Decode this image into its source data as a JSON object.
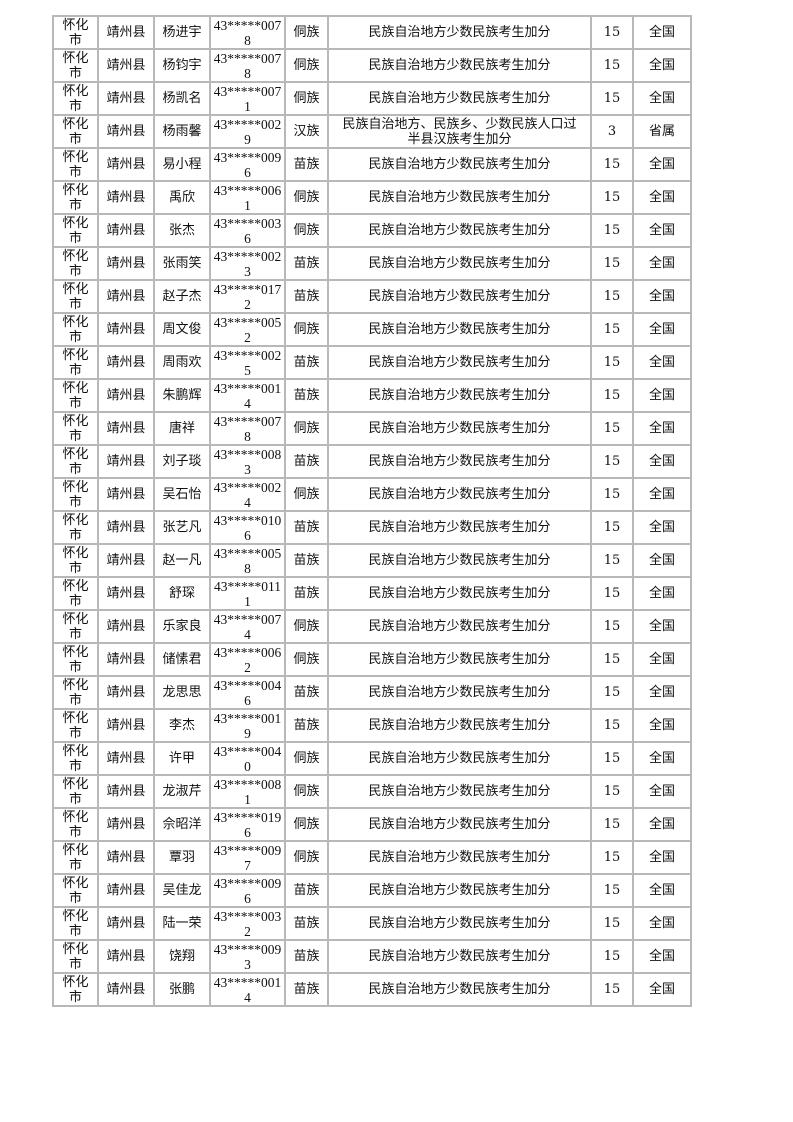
{
  "rows": [
    {
      "city": "怀化市",
      "county": "靖州县",
      "name": "杨进宇",
      "id": "43*****0078",
      "ethnicity": "侗族",
      "type": "民族自治地方少数民族考生加分",
      "score": "15",
      "scope": "全国"
    },
    {
      "city": "怀化市",
      "county": "靖州县",
      "name": "杨钧宇",
      "id": "43*****0078",
      "ethnicity": "侗族",
      "type": "民族自治地方少数民族考生加分",
      "score": "15",
      "scope": "全国"
    },
    {
      "city": "怀化市",
      "county": "靖州县",
      "name": "杨凯名",
      "id": "43*****0071",
      "ethnicity": "侗族",
      "type": "民族自治地方少数民族考生加分",
      "score": "15",
      "scope": "全国"
    },
    {
      "city": "怀化市",
      "county": "靖州县",
      "name": "杨雨馨",
      "id": "43*****0029",
      "ethnicity": "汉族",
      "type": "民族自治地方、民族乡、少数民族人口过半县汉族考生加分",
      "score": "3",
      "scope": "省属"
    },
    {
      "city": "怀化市",
      "county": "靖州县",
      "name": "易小程",
      "id": "43*****0096",
      "ethnicity": "苗族",
      "type": "民族自治地方少数民族考生加分",
      "score": "15",
      "scope": "全国"
    },
    {
      "city": "怀化市",
      "county": "靖州县",
      "name": "禹欣",
      "id": "43*****0061",
      "ethnicity": "侗族",
      "type": "民族自治地方少数民族考生加分",
      "score": "15",
      "scope": "全国"
    },
    {
      "city": "怀化市",
      "county": "靖州县",
      "name": "张杰",
      "id": "43*****0036",
      "ethnicity": "侗族",
      "type": "民族自治地方少数民族考生加分",
      "score": "15",
      "scope": "全国"
    },
    {
      "city": "怀化市",
      "county": "靖州县",
      "name": "张雨笑",
      "id": "43*****0023",
      "ethnicity": "苗族",
      "type": "民族自治地方少数民族考生加分",
      "score": "15",
      "scope": "全国"
    },
    {
      "city": "怀化市",
      "county": "靖州县",
      "name": "赵子杰",
      "id": "43*****0172",
      "ethnicity": "苗族",
      "type": "民族自治地方少数民族考生加分",
      "score": "15",
      "scope": "全国"
    },
    {
      "city": "怀化市",
      "county": "靖州县",
      "name": "周文俊",
      "id": "43*****0052",
      "ethnicity": "侗族",
      "type": "民族自治地方少数民族考生加分",
      "score": "15",
      "scope": "全国"
    },
    {
      "city": "怀化市",
      "county": "靖州县",
      "name": "周雨欢",
      "id": "43*****0025",
      "ethnicity": "苗族",
      "type": "民族自治地方少数民族考生加分",
      "score": "15",
      "scope": "全国"
    },
    {
      "city": "怀化市",
      "county": "靖州县",
      "name": "朱鹏辉",
      "id": "43*****0014",
      "ethnicity": "苗族",
      "type": "民族自治地方少数民族考生加分",
      "score": "15",
      "scope": "全国"
    },
    {
      "city": "怀化市",
      "county": "靖州县",
      "name": "唐祥",
      "id": "43*****0078",
      "ethnicity": "侗族",
      "type": "民族自治地方少数民族考生加分",
      "score": "15",
      "scope": "全国"
    },
    {
      "city": "怀化市",
      "county": "靖州县",
      "name": "刘子琰",
      "id": "43*****0083",
      "ethnicity": "苗族",
      "type": "民族自治地方少数民族考生加分",
      "score": "15",
      "scope": "全国"
    },
    {
      "city": "怀化市",
      "county": "靖州县",
      "name": "吴石怡",
      "id": "43*****0024",
      "ethnicity": "侗族",
      "type": "民族自治地方少数民族考生加分",
      "score": "15",
      "scope": "全国"
    },
    {
      "city": "怀化市",
      "county": "靖州县",
      "name": "张艺凡",
      "id": "43*****0106",
      "ethnicity": "苗族",
      "type": "民族自治地方少数民族考生加分",
      "score": "15",
      "scope": "全国"
    },
    {
      "city": "怀化市",
      "county": "靖州县",
      "name": "赵一凡",
      "id": "43*****0058",
      "ethnicity": "苗族",
      "type": "民族自治地方少数民族考生加分",
      "score": "15",
      "scope": "全国"
    },
    {
      "city": "怀化市",
      "county": "靖州县",
      "name": "舒琛",
      "id": "43*****0111",
      "ethnicity": "苗族",
      "type": "民族自治地方少数民族考生加分",
      "score": "15",
      "scope": "全国"
    },
    {
      "city": "怀化市",
      "county": "靖州县",
      "name": "乐家良",
      "id": "43*****0074",
      "ethnicity": "侗族",
      "type": "民族自治地方少数民族考生加分",
      "score": "15",
      "scope": "全国"
    },
    {
      "city": "怀化市",
      "county": "靖州县",
      "name": "储愫君",
      "id": "43*****0062",
      "ethnicity": "侗族",
      "type": "民族自治地方少数民族考生加分",
      "score": "15",
      "scope": "全国"
    },
    {
      "city": "怀化市",
      "county": "靖州县",
      "name": "龙思思",
      "id": "43*****0046",
      "ethnicity": "苗族",
      "type": "民族自治地方少数民族考生加分",
      "score": "15",
      "scope": "全国"
    },
    {
      "city": "怀化市",
      "county": "靖州县",
      "name": "李杰",
      "id": "43*****0019",
      "ethnicity": "苗族",
      "type": "民族自治地方少数民族考生加分",
      "score": "15",
      "scope": "全国"
    },
    {
      "city": "怀化市",
      "county": "靖州县",
      "name": "许甲",
      "id": "43*****0040",
      "ethnicity": "侗族",
      "type": "民族自治地方少数民族考生加分",
      "score": "15",
      "scope": "全国"
    },
    {
      "city": "怀化市",
      "county": "靖州县",
      "name": "龙淑芹",
      "id": "43*****0081",
      "ethnicity": "侗族",
      "type": "民族自治地方少数民族考生加分",
      "score": "15",
      "scope": "全国"
    },
    {
      "city": "怀化市",
      "county": "靖州县",
      "name": "佘昭洋",
      "id": "43*****0196",
      "ethnicity": "侗族",
      "type": "民族自治地方少数民族考生加分",
      "score": "15",
      "scope": "全国"
    },
    {
      "city": "怀化市",
      "county": "靖州县",
      "name": "覃羽",
      "id": "43*****0097",
      "ethnicity": "侗族",
      "type": "民族自治地方少数民族考生加分",
      "score": "15",
      "scope": "全国"
    },
    {
      "city": "怀化市",
      "county": "靖州县",
      "name": "吴佳龙",
      "id": "43*****0096",
      "ethnicity": "苗族",
      "type": "民族自治地方少数民族考生加分",
      "score": "15",
      "scope": "全国"
    },
    {
      "city": "怀化市",
      "county": "靖州县",
      "name": "陆一荣",
      "id": "43*****0032",
      "ethnicity": "苗族",
      "type": "民族自治地方少数民族考生加分",
      "score": "15",
      "scope": "全国"
    },
    {
      "city": "怀化市",
      "county": "靖州县",
      "name": "饶翔",
      "id": "43*****0093",
      "ethnicity": "苗族",
      "type": "民族自治地方少数民族考生加分",
      "score": "15",
      "scope": "全国"
    },
    {
      "city": "怀化市",
      "county": "靖州县",
      "name": "张鹏",
      "id": "43*****0014",
      "ethnicity": "苗族",
      "type": "民族自治地方少数民族考生加分",
      "score": "15",
      "scope": "全国"
    }
  ]
}
